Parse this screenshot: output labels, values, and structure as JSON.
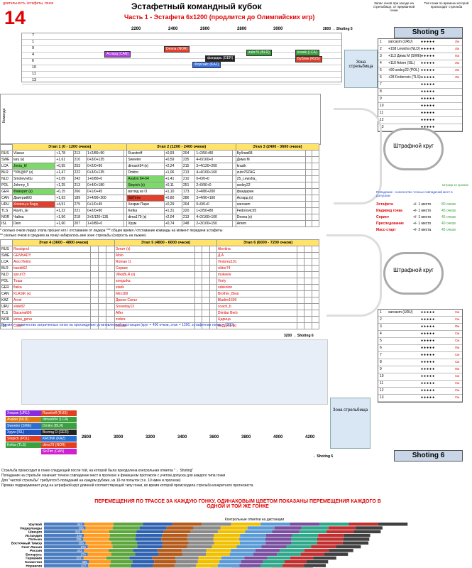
{
  "header": {
    "number": "14",
    "top_note": "длительность эстафеты, гонок",
    "title": "Эстафетный командный кубок",
    "subtitle": "Часть 1 - Эстафета 6x1200 (продлится до Олимпийских игр)",
    "scale": [
      "2200",
      "2400",
      "2600",
      "2800",
      "3000"
    ],
    "shot5_arrow": "2800 → Shoting 5",
    "zone_label": "Зона стрельбища",
    "shot_side_note": "Запас очков при заходе на стрельбище, от прерванной гонки",
    "type_note": "Тип гонки по времени которой происходит стрельба"
  },
  "upper_track": {
    "rows": [
      "7",
      "1",
      "9",
      "4",
      "6",
      "10",
      "11",
      "13"
    ],
    "chips": [
      {
        "label": "Асгард (CAN)",
        "color": "#b040e0"
      },
      {
        "label": "Desna (NOR)",
        "color": "#e0402c"
      },
      {
        "label": "фандарь (GER)",
        "color": "#222222"
      },
      {
        "label": "zubr76 (BLR)",
        "color": "#3aa040"
      },
      {
        "label": "krasik (LCA)",
        "color": "#3aa040"
      },
      {
        "label": "Форсайс (KAZ)",
        "color": "#3a70e0"
      },
      {
        "label": "Бублик (RUS)",
        "color": "#e0402c"
      }
    ]
  },
  "shooting5": {
    "title": "Shoting 5",
    "rows": [
      {
        "no": "1",
        "time": "sarcasm (URU)",
        "label": "Лж"
      },
      {
        "no": "2",
        "time": "+158 Lewsha (NLD)",
        "label": "Лж"
      },
      {
        "no": "3",
        "time": "+113 Дима М (SWE)",
        "label": "Пж"
      },
      {
        "no": "4",
        "time": "+110 Artem (ISL)",
        "label": "Лж"
      },
      {
        "no": "5",
        "time": "+90 sedoy22 (POL)",
        "label": "Лж"
      },
      {
        "no": "6",
        "time": "+28 Fedorovic (TLS)",
        "label": "Лж"
      },
      {
        "no": "7",
        "time": "",
        "label": ""
      },
      {
        "no": "8",
        "time": "",
        "label": ""
      },
      {
        "no": "9",
        "time": "",
        "label": ""
      },
      {
        "no": "10",
        "time": "",
        "label": ""
      },
      {
        "no": "11",
        "time": "",
        "label": ""
      },
      {
        "no": "12",
        "time": "",
        "label": ""
      },
      {
        "no": "13",
        "time": "",
        "label": ""
      }
    ]
  },
  "shooting6": {
    "title": "Shoting 6",
    "rows": [
      {
        "no": "1",
        "time": "sarcasm (URU)",
        "label": "См"
      },
      {
        "no": "2",
        "time": "",
        "label": "См"
      },
      {
        "no": "3",
        "time": "",
        "label": "Пм"
      },
      {
        "no": "4",
        "time": "",
        "label": "См"
      },
      {
        "no": "5",
        "time": "",
        "label": "См"
      },
      {
        "no": "6",
        "time": "",
        "label": "Пм"
      },
      {
        "no": "7",
        "time": "",
        "label": "См"
      },
      {
        "no": "8",
        "time": "",
        "label": "См"
      },
      {
        "no": "9",
        "time": "",
        "label": "Пм"
      },
      {
        "no": "10",
        "time": "",
        "label": "См"
      },
      {
        "no": "11",
        "time": "",
        "label": "См"
      },
      {
        "no": "12",
        "time": "",
        "label": "См"
      },
      {
        "no": "13",
        "time": "",
        "label": "См"
      }
    ]
  },
  "penalty": {
    "loop_label": "Штрафной круг",
    "hit_note": "Попадание - количество точных совпадений мест в допуском",
    "fine_note": "Штраф за промах",
    "lines": [
      {
        "label": "Эстафета",
        "rule": "+/- 1 место",
        "pts": "80 очков"
      },
      {
        "label": "Индивид гонка",
        "rule": "+/- 1 место",
        "pts": "45 очков"
      },
      {
        "label": "Спринт",
        "rule": "+/- 1 место",
        "pts": "45 очков"
      },
      {
        "label": "Преследование",
        "rule": "+/- 1 место",
        "pts": "40 очков"
      },
      {
        "label": "Масс-старт",
        "rule": "+/- 2 места",
        "pts": "45 очков"
      }
    ]
  },
  "results": {
    "stage_heads": [
      "Этап 1 (0 - 1200 очков)",
      "Этап 2 (1200 - 2400 очков)",
      "Этап 3 (2400 - 3600 очков)"
    ],
    "stage_heads2": [
      "Этап 4 (3600 - 4800 очков)",
      "Этап 5 (4800 - 6000 очков)",
      "Этап 6 (6000 - 7200 очков)"
    ],
    "col_team": "Команда",
    "rows": [
      {
        "team": "RUS",
        "s1": "Vlasuz",
        "t1": "+1,78",
        "p1": "213",
        "e1": "1+2/80+90",
        "s2": "Russtroff",
        "t2": "+0,93",
        "p2": "204",
        "e2": "1+2/50+80",
        "s3": "Бублик68"
      },
      {
        "team": "SWE",
        "s1": "laru (к)",
        "t1": "+1,61",
        "p1": "210",
        "e1": "0+3/0+135",
        "s2": "Sweeter",
        "t2": "+0,59",
        "p2": "235",
        "e2": "4+0/160+0",
        "s3": "Дима М"
      },
      {
        "team": "LCA",
        "s1": "Jenia_kf",
        "t1": "+0,55",
        "p1": "253",
        "e1": "0+2/0+90",
        "s2": "dimash94 (к)",
        "t2": "+2,24",
        "p2": "215",
        "e2": "3+4/120+200",
        "s3": "krasik"
      },
      {
        "team": "BLR",
        "s1": "*VIK@N* (к)",
        "t1": "+1,47",
        "p1": "222",
        "e1": "0+3/0+135",
        "s2": "Dmitro",
        "t2": "+1,06",
        "p2": "213",
        "e2": "4+4/160+160",
        "s3": "zubr76ZAG"
      },
      {
        "team": "NLD",
        "s1": "Smolevrettu",
        "t1": "+1,09",
        "p1": "243",
        "e1": "1+0/80+0",
        "s2": "Avalon 84-04",
        "t2": "+1,41",
        "p2": "210",
        "e2": "0+0/0+0",
        "s3": "25_Lewsha_"
      },
      {
        "team": "POL",
        "s1": "Johnny_5",
        "t1": "+1,25",
        "p1": "213",
        "e1": "0+4/0+180",
        "s2": "Stepich (к)",
        "t2": "+0,11",
        "p2": "251",
        "e2": "2+0/90+0",
        "s3": "sedoy22"
      },
      {
        "team": "GER",
        "s1": "Фаворит (к)",
        "t1": "+0,15",
        "p1": "266",
        "e1": "0+1/0+45",
        "s2": "взгляд из О",
        "t2": "+1,10",
        "p2": "173",
        "e2": "2+4/80+200",
        "s3": "фандарин"
      },
      {
        "team": "CAN",
        "s1": "Дмитрий93",
        "t1": "+1,63",
        "p1": "189",
        "e1": "2+4/90+200",
        "s2": "SkiTime",
        "t2": "+0,80",
        "p2": "286",
        "e2": "3+4/90+160",
        "s3": "Асгард (к)"
      },
      {
        "team": "URU",
        "s1": "Хоппец и Бард",
        "t1": "+4,51",
        "p1": "275",
        "e1": "0+1/0+45",
        "s2": "Хекрик Пари",
        "t2": "+0,29",
        "p2": "204",
        "e2": "0+0/0+0",
        "s3": "sarcasm"
      },
      {
        "team": "TLS",
        "s1": "Ruvin_Gi",
        "t1": "+1,22",
        "p1": "221",
        "e1": "0+2/0+90",
        "s2": "Ketka",
        "t2": "+1,31",
        "p2": "220",
        "e2": "1+2/50+80",
        "s3": "Fedorovich5"
      },
      {
        "team": "NOR",
        "s1": "Чайна",
        "t1": "+1,56",
        "p1": "218",
        "e1": "3+3/120+135",
        "s2": "dima179 (к)",
        "t2": "+2,04",
        "p2": "213",
        "e2": "4+2/160+100",
        "s3": "Desna (к)"
      },
      {
        "team": "ISL",
        "s1": "Dein",
        "t1": "+1,60",
        "p1": "207",
        "e1": "1+0/80+0",
        "s2": "Хрум",
        "t2": "+0,74",
        "p2": "248",
        "e2": "2+3/100+150",
        "s3": "Artem"
      }
    ],
    "rows2": [
      {
        "team": "RUS",
        "a": "Rossignol",
        "b": "Зенит (к)",
        "c": "Alevtina"
      },
      {
        "team": "SWE",
        "a": "GENNADY",
        "b": "Molo",
        "c": "Д.А"
      },
      {
        "team": "LCA",
        "a": "Aino Helmi",
        "b": "Roman I1",
        "c": "Vintorez101"
      },
      {
        "team": "BLR",
        "a": "bandit62",
        "b": "Сервис",
        "c": "viktor74"
      },
      {
        "team": "NLD",
        "a": "sprut73",
        "b": "VilkaBLR (к)",
        "c": "mokeew"
      },
      {
        "team": "POL",
        "a": "Тоша",
        "b": "snegurka",
        "c": "Vorty"
      },
      {
        "team": "GER",
        "a": "flaika",
        "b": "starik",
        "c": "odekolon"
      },
      {
        "team": "CAN",
        "a": "KLASIK (к)",
        "b": "felix169",
        "c": "Brother_Bear"
      },
      {
        "team": "KAZ",
        "a": "Arvol",
        "b": "Джони Сильт",
        "c": "Bladim1609"
      },
      {
        "team": "URU",
        "a": "slide82",
        "b": "Snowday13",
        "c": "coach_b"
      },
      {
        "team": "TLS",
        "a": "Василий96",
        "b": "Alfer",
        "c": "Dimitar Berb"
      },
      {
        "team": "NOR",
        "a": "larisa_gena",
        "b": "ziobra",
        "c": "Царица"
      },
      {
        "team": "ISL",
        "a": "Спруг",
        "b": "bianka",
        "c": "Андрусь (к)"
      }
    ],
    "footnote1": "* сколько очков лидер этапа прошел его / отставание от лидера *** общее время / отставание команды на момент передачи эстафеты",
    "footnote2": "** сколько очков в среднем за гонку набиралось вне зоне стрельбы (скорость на лыжне)",
    "time_note": "Время — количество затраченных гонок на прохождение установленной дистанции (круг = 400 очков, этап = 1200, эстафетная гонка = 7200)",
    "arrow_3200": "3200 → Shoting 6",
    "scale_bottom": [
      "2600",
      "2800",
      "3000",
      "3200",
      "3400",
      "3600",
      "3800",
      "4000",
      "4200"
    ],
    "shot6_arrow": "→ Shoting 6"
  },
  "legend": [
    {
      "a": "Хекрик (URU)",
      "b": "Russtroff (RUS)",
      "ca": "#8a2be2",
      "cb": "#e04020"
    },
    {
      "a": "Avalon (NLD)",
      "b": "dimash94 (LCA)",
      "ca": "#e07a10",
      "cb": "#3aa040"
    },
    {
      "a": "Sweeter (SWE)",
      "b": "Dmitro (BLR)",
      "ca": "#2a70d0",
      "cb": "#3aa040"
    },
    {
      "a": "Хрум (ISL)",
      "b": "Взгляд О (GER)",
      "ca": "#2050c0",
      "cb": "#222222"
    },
    {
      "a": "Stepich (POL)",
      "b": "KRONK (KAZ)",
      "ca": "#e04020",
      "cb": "#2a70d0"
    },
    {
      "a": "Ketka (TLS)",
      "b": "dima79 (NOR)",
      "ca": "#3aa040",
      "cb": "#e04020"
    },
    {
      "a": "",
      "b": "SkiTim (CAN)",
      "ca": "#ffffff",
      "cb": "#d020d0"
    }
  ],
  "notes": [
    "Стрельба происходит в гонке следующей после той, на которой была преодолена контрольная отметка \"→ Shoting\"",
    "Попадание на стрельбе означает точное совпадение мест в прогнозе и финишном протоколе с учетом допуска для каждого типа гонки",
    "Для \"чистой стрельбы\" требуется 5 попаданий на каждом рубеже, из 10-ти попыток (т.е. 10 имен в прогнозе)",
    "Промах подразумевает уход на штрафной круг длинной соответствующей типу гонки, во время которой происходила стрельба конкретного прогнозиста"
  ],
  "chart_title": "ПЕРЕМЕЩЕНИЯ ПО ТРАССЕ ЗА КАЖДУЮ ГОНКУ, ОДИНАКОВЫМ ЦВЕТОМ ПОКАЗАНЫ ПЕРЕМЕЩЕНИЯ КАЖДОГО В ОДНОЙ И ТОЙ ЖЕ ГОНКЕ",
  "chart_data": {
    "type": "bar",
    "title": "",
    "xlabel": "Контрольные отметки на дистанции",
    "ticks": [
      "0",
      "400",
      "800",
      "1200",
      "1600",
      "2000",
      "2400",
      "2800",
      "3200",
      "3600"
    ],
    "xlim": [
      0,
      3600
    ],
    "categories": [
      "Уругвай",
      "Нидерланды",
      "Швеция",
      "Исландия",
      "Польша",
      "Восточный Тимор",
      "Сент-Люсия",
      "Россия",
      "Беларусь",
      "Германия",
      "Казахстан",
      "Норвегия",
      "Канада"
    ],
    "totals": [
      3110,
      2895,
      2880,
      2790,
      2782,
      2775,
      2710,
      2645,
      2600,
      2500,
      2430,
      2410,
      2300
    ],
    "first_segment": [
      343,
      356,
      326,
      340,
      336,
      356,
      374,
      342,
      374,
      337,
      385,
      377,
      386
    ],
    "segment_colors": [
      "#4a7cc0",
      "#ff9b20",
      "#5ca63c",
      "#2f62b0",
      "#b45a1a",
      "#8a8a8a",
      "#f0c000",
      "#5b9bd5",
      "#7a4fa0",
      "#2fa88a",
      "#c03030",
      "#404040",
      "#a0c050"
    ]
  }
}
